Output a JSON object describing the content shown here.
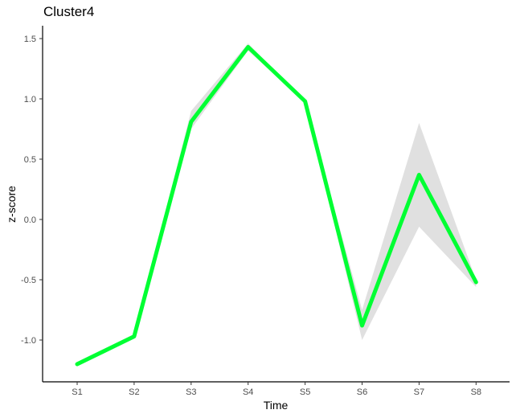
{
  "chart_data": {
    "type": "line",
    "title": "Cluster4",
    "xlabel": "Time",
    "ylabel": "z-score",
    "categories": [
      "S1",
      "S2",
      "S3",
      "S4",
      "S5",
      "S6",
      "S7",
      "S8"
    ],
    "series": [
      {
        "values": [
          -1.2,
          -0.97,
          0.81,
          1.43,
          0.98,
          -0.88,
          0.37,
          -0.52
        ],
        "band_upper": [
          -1.2,
          -0.95,
          0.9,
          1.46,
          0.98,
          -0.75,
          0.8,
          -0.5
        ],
        "band_lower": [
          -1.2,
          -0.99,
          0.75,
          1.4,
          0.97,
          -1.0,
          -0.06,
          -0.56
        ],
        "color": "#00ff33",
        "band_color": "#e0e0e0"
      }
    ],
    "yticks": [
      -1.0,
      -0.5,
      0.0,
      0.5,
      1.0,
      1.5
    ],
    "ytick_labels": [
      "-1.0",
      "-0.5",
      "0.0",
      "0.5",
      "1.0",
      "1.5"
    ],
    "ylim": [
      -1.35,
      1.6
    ],
    "grid": false,
    "legend": "none"
  }
}
